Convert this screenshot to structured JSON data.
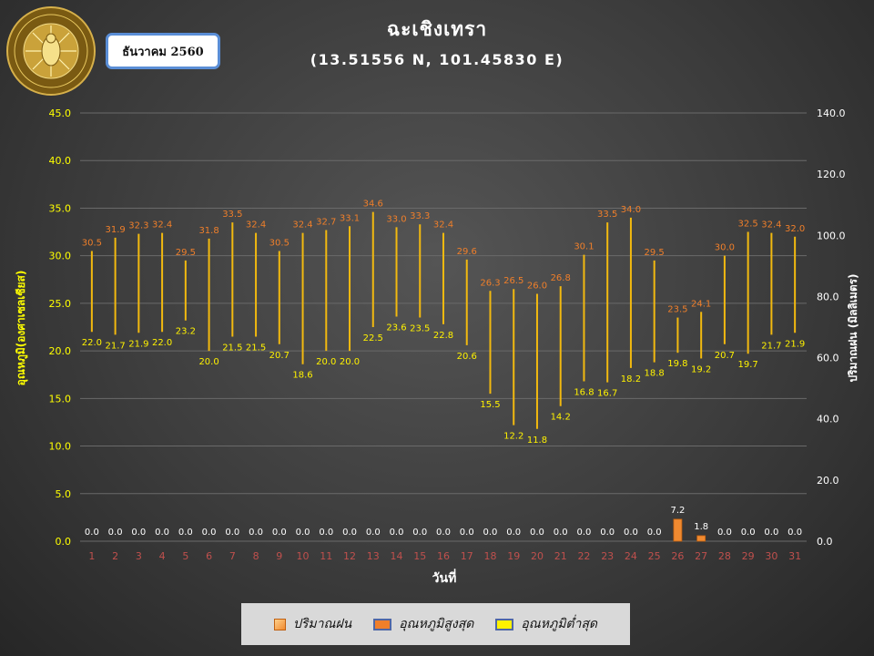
{
  "month_label": "ธันวาคม 2560",
  "logo": {
    "name": "meteorological-department-seal",
    "text_thai": "กรมอุตุนิยมวิทยา",
    "text_english": "METEOROLOGICAL DEPARTMENT"
  },
  "colors": {
    "background": "#3c3c3c",
    "temp_max": "#f07f2a",
    "temp_min": "#fff200",
    "range_line": "#f2b90f",
    "rain": "#f08a30",
    "left_axis_text": "#ffff00",
    "right_axis_text": "#ffffff",
    "x_tick": "#c0504d"
  },
  "chart_data": {
    "type": "bar",
    "title": "ฉะเชิงเทรา",
    "subtitle": "(13.51556 N, 101.45830 E)",
    "xlabel": "วันที่",
    "ylabel_left": "อุณหภูมิ(องศาเซลเซียส)",
    "ylabel_right": "ปริมาณฝน (มิลลิเมตร)",
    "ylim_left": [
      0,
      45
    ],
    "ylim_right": [
      0,
      140
    ],
    "yticks_left": [
      "0.0",
      "5.0",
      "10.0",
      "15.0",
      "20.0",
      "25.0",
      "30.0",
      "35.0",
      "40.0",
      "45.0"
    ],
    "yticks_right": [
      "0.0",
      "20.0",
      "40.0",
      "60.0",
      "80.0",
      "100.0",
      "120.0",
      "140.0"
    ],
    "grid": true,
    "legend_position": "bottom",
    "categories": [
      1,
      2,
      3,
      4,
      5,
      6,
      7,
      8,
      9,
      10,
      11,
      12,
      13,
      14,
      15,
      16,
      17,
      18,
      19,
      20,
      21,
      22,
      23,
      24,
      25,
      26,
      27,
      28,
      29,
      30,
      31
    ],
    "series": [
      {
        "name": "ปริมาณฝน",
        "kind": "bar",
        "axis": "right",
        "values": [
          0.0,
          0.0,
          0.0,
          0.0,
          0.0,
          0.0,
          0.0,
          0.0,
          0.0,
          0.0,
          0.0,
          0.0,
          0.0,
          0.0,
          0.0,
          0.0,
          0.0,
          0.0,
          0.0,
          0.0,
          0.0,
          0.0,
          0.0,
          0.0,
          0.0,
          7.2,
          1.8,
          0.0,
          0.0,
          0.0,
          0.0
        ]
      },
      {
        "name": "อุณหภูมิสูงสุด",
        "kind": "high",
        "axis": "left",
        "values": [
          30.5,
          31.9,
          32.3,
          32.4,
          29.5,
          31.8,
          33.5,
          32.4,
          30.5,
          32.4,
          32.7,
          33.1,
          34.6,
          33.0,
          33.3,
          32.4,
          29.6,
          26.3,
          26.5,
          26.0,
          26.8,
          30.1,
          33.5,
          34.0,
          29.5,
          23.5,
          24.1,
          30.0,
          32.5,
          32.4,
          32.0
        ]
      },
      {
        "name": "อุณหภูมิต่ำสุด",
        "kind": "low",
        "axis": "left",
        "values": [
          22.0,
          21.7,
          21.9,
          22.0,
          23.2,
          20.0,
          21.5,
          21.5,
          20.7,
          18.6,
          20.0,
          20.0,
          22.5,
          23.6,
          23.5,
          22.8,
          20.6,
          15.5,
          12.2,
          11.8,
          14.2,
          16.8,
          16.7,
          18.2,
          18.8,
          19.8,
          19.2,
          20.7,
          19.7,
          21.7,
          21.9
        ]
      }
    ]
  }
}
